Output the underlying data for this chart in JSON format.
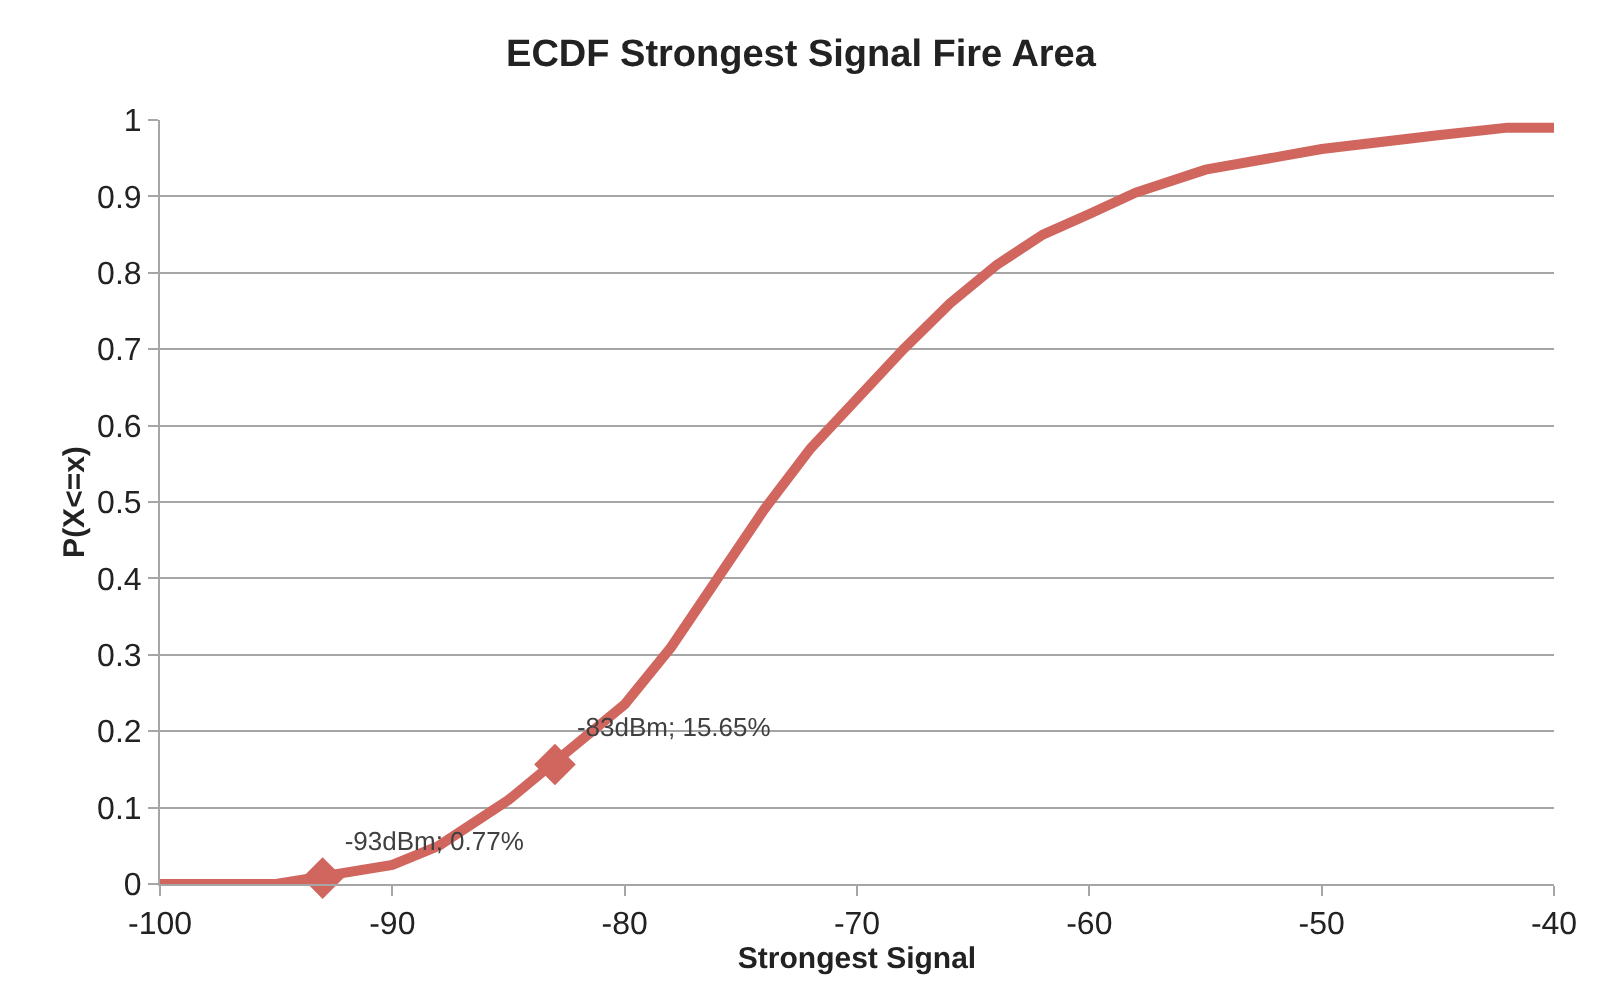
{
  "chart_data": {
    "type": "line",
    "title": "ECDF Strongest Signal Fire Area",
    "xlabel": "Strongest Signal",
    "ylabel": "P(X<=x)",
    "xlim": [
      -100,
      -40
    ],
    "xticks": [
      -100,
      -90,
      -80,
      -70,
      -60,
      -50,
      -40
    ],
    "ylim": [
      0,
      1
    ],
    "yticks": [
      0,
      0.1,
      0.2,
      0.3,
      0.4,
      0.5,
      0.6,
      0.7,
      0.8,
      0.9,
      1
    ],
    "grid": "y",
    "marker": "none",
    "line_style": "solid",
    "series": [
      {
        "color": "#d0665e",
        "x": [
          -100,
          -95,
          -93,
          -90,
          -88,
          -86,
          -85,
          -83,
          -80,
          -78,
          -76,
          -74,
          -72,
          -70,
          -68,
          -66,
          -64,
          -62,
          -60,
          -58,
          -55,
          -50,
          -45,
          -42,
          -40
        ],
        "values": [
          0,
          0,
          0.01,
          0.025,
          0.05,
          0.09,
          0.11,
          0.16,
          0.235,
          0.31,
          0.4,
          0.49,
          0.57,
          0.635,
          0.7,
          0.76,
          0.81,
          0.85,
          0.877,
          0.905,
          0.935,
          0.962,
          0.98,
          0.99,
          0.99
        ]
      },
      {
        "type": "scatter",
        "marker": "diamond",
        "color": "#d0665e",
        "x": [
          -93,
          -83
        ],
        "values": [
          0.0077,
          0.1565
        ],
        "value_labels": [
          "-93dBm; 0.77%",
          "-83dBm; 15.65%"
        ]
      }
    ]
  }
}
